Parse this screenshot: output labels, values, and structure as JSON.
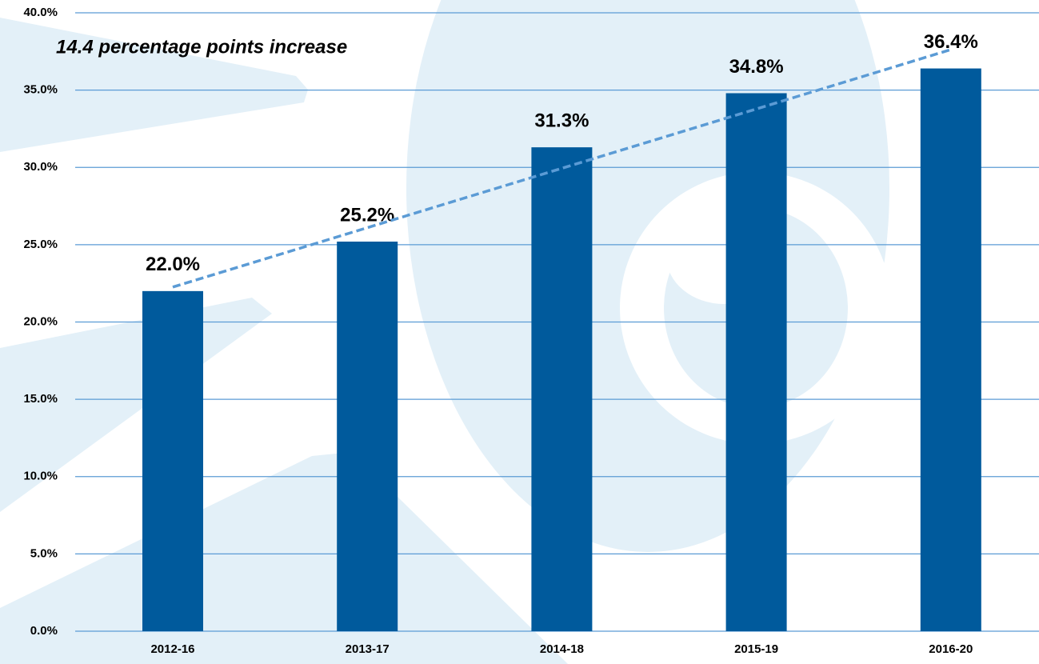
{
  "chart_data": {
    "type": "bar",
    "annotation": "14.4 percentage points increase",
    "categories": [
      "2012-16",
      "2013-17",
      "2014-18",
      "2015-19",
      "2016-20"
    ],
    "values": [
      22.0,
      25.2,
      31.3,
      34.8,
      36.4
    ],
    "value_labels": [
      "22.0%",
      "25.2%",
      "31.3%",
      "34.8%",
      "36.4%"
    ],
    "color": "#005a9c",
    "ylim": [
      0,
      40
    ],
    "yticks": [
      {
        "value": 0,
        "label": "0.0%"
      },
      {
        "value": 5,
        "label": "5.0%"
      },
      {
        "value": 10,
        "label": "10.0%"
      },
      {
        "value": 15,
        "label": "15.0%"
      },
      {
        "value": 20,
        "label": "20.0%"
      },
      {
        "value": 25,
        "label": "25.0%"
      },
      {
        "value": 30,
        "label": "30.0%"
      },
      {
        "value": 35,
        "label": "35.0%"
      },
      {
        "value": 40,
        "label": "40.0%"
      }
    ],
    "grid": true,
    "trendline": true,
    "trendline_color": "#5b9bd5"
  }
}
